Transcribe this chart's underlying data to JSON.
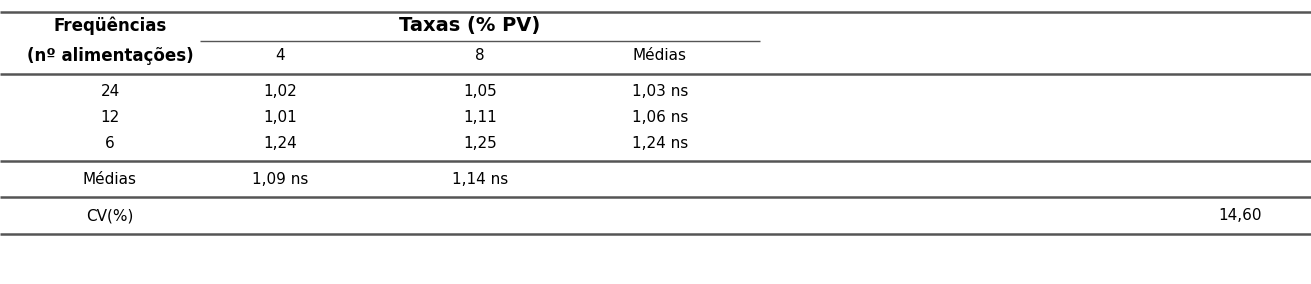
{
  "header_col_line1": "Freqüências",
  "header_col_line2": "(nº alimentações)",
  "taxas_header": "Taxas (% PV)",
  "sub_headers": [
    "4",
    "8",
    "Médias"
  ],
  "row_labels": [
    "24",
    "12",
    "6"
  ],
  "data_rows": [
    [
      "1,02",
      "1,05",
      "1,03 ns"
    ],
    [
      "1,01",
      "1,11",
      "1,06 ns"
    ],
    [
      "1,24",
      "1,25",
      "1,24 ns"
    ]
  ],
  "medias_label": "Médias",
  "medias_values": [
    "1,09 ns",
    "1,14 ns",
    ""
  ],
  "cv_label": "CV(%)",
  "cv_value": "14,60",
  "bg_color": "#ffffff",
  "text_color": "#000000",
  "line_color": "#555555",
  "fig_width": 13.11,
  "fig_height": 2.84,
  "dpi": 100
}
